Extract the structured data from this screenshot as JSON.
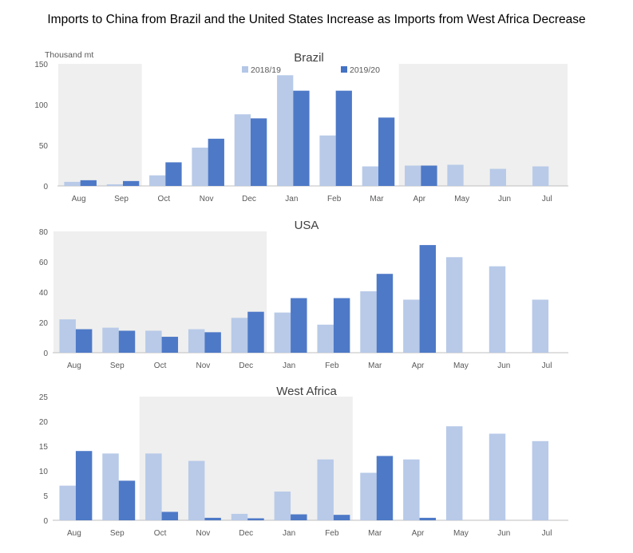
{
  "title": "Imports to China from Brazil and the United States Increase as Imports from West Africa Decrease",
  "colors": {
    "series_2018_19": "#b4c7e7",
    "series_2019_20": "#4472c4",
    "shade": "#efefef",
    "axis": "#bfbfbf",
    "text": "#595959"
  },
  "chart_data": [
    {
      "type": "bar",
      "title": "Brazil",
      "ylabel": "Thousand mt",
      "ylim": [
        0,
        150
      ],
      "yticks": [
        0,
        50,
        100,
        150
      ],
      "categories": [
        "Aug",
        "Sep",
        "Oct",
        "Nov",
        "Dec",
        "Jan",
        "Feb",
        "Mar",
        "Apr",
        "May",
        "Jun",
        "Jul"
      ],
      "legend": {
        "placement": "top-center",
        "entries": [
          "2018/19",
          "2019/20"
        ]
      },
      "shaded_ranges": [
        [
          "Aug",
          "Sep"
        ],
        [
          "Apr",
          "Jul"
        ]
      ],
      "series": [
        {
          "name": "2018/19",
          "values": [
            5,
            2,
            13,
            47,
            88,
            136,
            62,
            24,
            25,
            26,
            21,
            24
          ]
        },
        {
          "name": "2019/20",
          "values": [
            7,
            6,
            29,
            58,
            83,
            117,
            117,
            84,
            25,
            null,
            null,
            null
          ]
        }
      ]
    },
    {
      "type": "bar",
      "title": "USA",
      "ylim": [
        0,
        80
      ],
      "yticks": [
        0,
        20,
        40,
        60,
        80
      ],
      "categories": [
        "Aug",
        "Sep",
        "Oct",
        "Nov",
        "Dec",
        "Jan",
        "Feb",
        "Mar",
        "Apr",
        "May",
        "Jun",
        "Jul"
      ],
      "shaded_ranges": [
        [
          "Aug",
          "Dec"
        ]
      ],
      "series": [
        {
          "name": "2018/19",
          "values": [
            22,
            16.5,
            14.5,
            15.5,
            23,
            26.5,
            18.5,
            40.5,
            35,
            63,
            57,
            35
          ]
        },
        {
          "name": "2019/20",
          "values": [
            15.5,
            14.5,
            10.5,
            13.5,
            27,
            36,
            36,
            52,
            71,
            null,
            null,
            null
          ]
        }
      ]
    },
    {
      "type": "bar",
      "title": "West Africa",
      "ylim": [
        0,
        25
      ],
      "yticks": [
        0,
        5,
        10,
        15,
        20,
        25
      ],
      "categories": [
        "Aug",
        "Sep",
        "Oct",
        "Nov",
        "Dec",
        "Jan",
        "Feb",
        "Mar",
        "Apr",
        "May",
        "Jun",
        "Jul"
      ],
      "shaded_ranges": [
        [
          "Oct",
          "Feb"
        ]
      ],
      "series": [
        {
          "name": "2018/19",
          "values": [
            7,
            13.5,
            13.5,
            12,
            1.3,
            5.8,
            12.3,
            9.6,
            12.3,
            19,
            17.5,
            16
          ]
        },
        {
          "name": "2019/20",
          "values": [
            14,
            8,
            1.7,
            0.5,
            0.4,
            1.2,
            1.1,
            13,
            0.5,
            null,
            null,
            null
          ]
        }
      ]
    }
  ]
}
